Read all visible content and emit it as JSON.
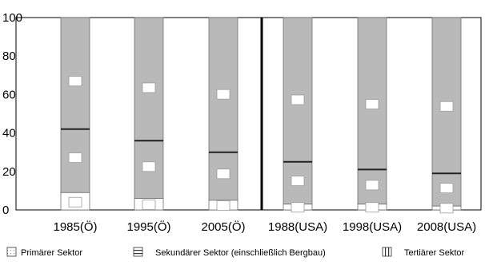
{
  "chart_data": {
    "type": "bar",
    "stacked": true,
    "categories": [
      "1985(Ö)",
      "1995(Ö)",
      "2005(Ö)",
      "1988(USA)",
      "1998(USA)",
      "2008(USA)"
    ],
    "series": [
      {
        "name": "Primärer Sektor",
        "values": [
          9,
          6,
          5,
          3,
          3,
          2
        ]
      },
      {
        "name": "Sekundärer Sektor (einschließlich Bergbau)",
        "values": [
          33,
          30,
          25,
          22,
          18,
          17
        ]
      },
      {
        "name": "Tertiärer Sektor",
        "values": [
          58,
          64,
          70,
          75,
          79,
          81
        ]
      }
    ],
    "ylim": [
      0,
      100
    ],
    "yticks": [
      "0",
      "20",
      "40",
      "60",
      "80",
      "100"
    ],
    "grid": false,
    "legend_position": "bottom",
    "colors": {
      "frame": "#000000",
      "bar": "#b9b9b9",
      "bar_edge": "#6e6e6e",
      "divider": "#000000"
    }
  }
}
